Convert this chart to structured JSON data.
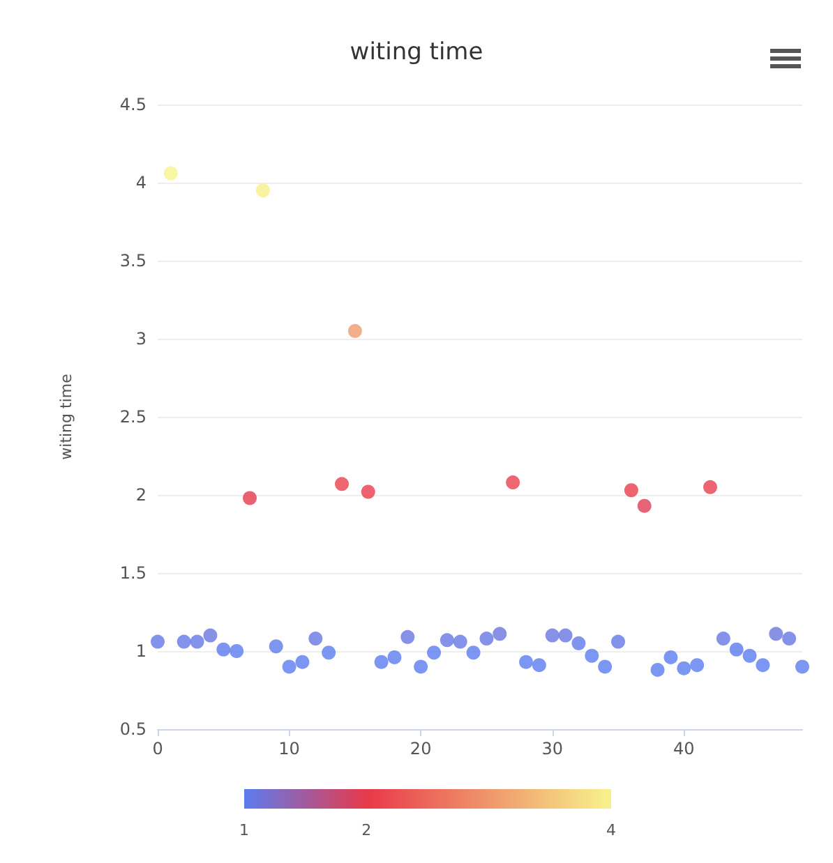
{
  "chart_data": {
    "type": "scatter",
    "title": "witing time",
    "ylabel": "witing time",
    "x": [
      0,
      1,
      2,
      3,
      4,
      5,
      6,
      7,
      8,
      9,
      10,
      11,
      12,
      13,
      14,
      15,
      16,
      17,
      18,
      19,
      20,
      21,
      22,
      23,
      24,
      25,
      26,
      27,
      28,
      29,
      30,
      31,
      32,
      33,
      34,
      35,
      36,
      37,
      38,
      39,
      40,
      41,
      42,
      43,
      44,
      45,
      46,
      47,
      48,
      49
    ],
    "values": [
      1.06,
      4.06,
      1.06,
      1.06,
      1.1,
      1.01,
      1.0,
      1.98,
      3.95,
      1.03,
      0.9,
      0.93,
      1.08,
      0.99,
      2.07,
      3.05,
      2.02,
      0.93,
      0.96,
      1.09,
      0.9,
      0.99,
      1.07,
      1.06,
      0.99,
      1.08,
      1.11,
      2.08,
      0.93,
      0.91,
      1.1,
      1.1,
      1.05,
      0.97,
      0.9,
      1.06,
      2.03,
      1.93,
      0.88,
      0.96,
      0.89,
      0.91,
      2.05,
      1.08,
      1.01,
      0.97,
      0.91,
      1.11,
      1.08,
      0.9
    ],
    "cvalues": [
      1.06,
      4.06,
      1.06,
      1.06,
      1.1,
      1.01,
      1.0,
      1.98,
      3.95,
      1.03,
      0.9,
      0.93,
      1.08,
      0.99,
      2.07,
      3.05,
      2.02,
      0.93,
      0.96,
      1.09,
      0.9,
      0.99,
      1.07,
      1.06,
      0.99,
      1.08,
      1.11,
      2.08,
      0.93,
      0.91,
      1.1,
      1.1,
      1.05,
      0.97,
      0.9,
      1.06,
      2.03,
      1.93,
      0.88,
      0.96,
      0.89,
      0.91,
      2.05,
      1.08,
      1.01,
      0.97,
      0.91,
      1.11,
      1.08,
      0.9
    ],
    "colors": [
      "#6478e6",
      "#f7f48c",
      "#6478e6",
      "#6478e6",
      "#6975df",
      "#5c7bee",
      "#5b7cf0",
      "#e53a4d",
      "#f7ef8a",
      "#5f7aeb",
      "#5b7cf0",
      "#5b7cf0",
      "#6677e3",
      "#5b7cf0",
      "#e9404c",
      "#f09b6d",
      "#e83b4b",
      "#5b7cf0",
      "#5b7cf0",
      "#6876e1",
      "#5b7cf0",
      "#5b7cf0",
      "#6577e4",
      "#6478e6",
      "#5b7cf0",
      "#6677e3",
      "#6b75de",
      "#e9404d",
      "#5b7cf0",
      "#5b7cf0",
      "#6975df",
      "#6975df",
      "#6279e8",
      "#5b7cf0",
      "#5b7cf0",
      "#6478e6",
      "#e83c4b",
      "#de3e56",
      "#5b7cf0",
      "#5b7cf0",
      "#5b7cf0",
      "#5b7cf0",
      "#e83e4c",
      "#6677e3",
      "#5c7bee",
      "#5b7cf0",
      "#5b7cf0",
      "#6b75de",
      "#6677e3",
      "#5b7cf0"
    ],
    "clim": [
      1,
      4
    ],
    "cticks": [
      1,
      2,
      4
    ],
    "xlim": [
      0,
      49
    ],
    "xticks": [
      0,
      10,
      20,
      30,
      40
    ],
    "ylim": [
      0.5,
      4.5
    ],
    "yticks": [
      0.5,
      1,
      1.5,
      2,
      2.5,
      3,
      3.5,
      4,
      4.5
    ],
    "grid": "y",
    "marker": "circle"
  }
}
